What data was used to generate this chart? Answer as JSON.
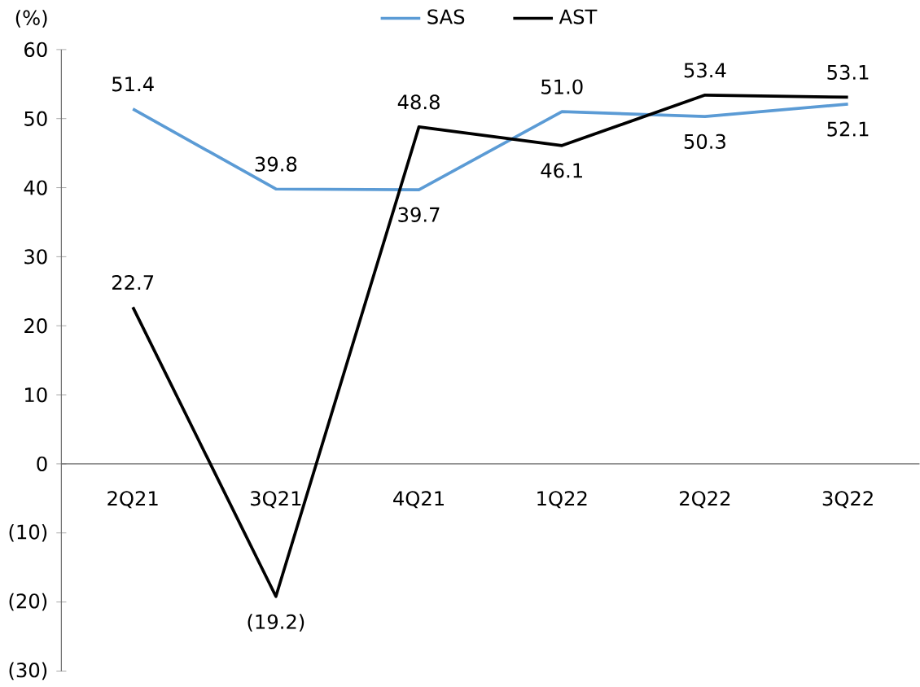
{
  "chart_data": {
    "type": "line",
    "ylabel": "(%)",
    "categories": [
      "2Q21",
      "3Q21",
      "4Q21",
      "1Q22",
      "2Q22",
      "3Q22"
    ],
    "series": [
      {
        "name": "SAS",
        "color": "#5b9bd5",
        "values": [
          51.4,
          39.8,
          39.7,
          51.0,
          50.3,
          52.1
        ],
        "value_labels": [
          "51.4",
          "39.8",
          "39.7",
          "51.0",
          "50.3",
          "52.1"
        ]
      },
      {
        "name": "AST",
        "color": "#000000",
        "values": [
          22.7,
          -19.2,
          48.8,
          46.1,
          53.4,
          53.1
        ],
        "value_labels": [
          "22.7",
          "(19.2)",
          "48.8",
          "46.1",
          "53.4",
          "53.1"
        ]
      }
    ],
    "ylim": [
      -30,
      60
    ],
    "yticks": [
      {
        "value": -30,
        "label": "(30)"
      },
      {
        "value": -20,
        "label": "(20)"
      },
      {
        "value": -10,
        "label": "(10)"
      },
      0,
      10,
      20,
      30,
      40,
      50,
      60
    ],
    "grid": false,
    "legend": "top",
    "marker": "none",
    "line_style": "solid"
  }
}
